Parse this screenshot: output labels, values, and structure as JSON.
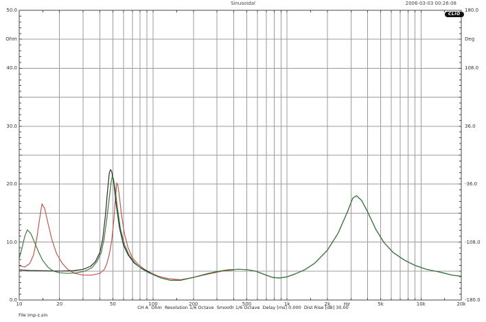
{
  "header": {
    "title": "Sinusoidal",
    "timestamp": "2006-03-03 00:26:08",
    "logo_text": "CLIO"
  },
  "footer": {
    "status_line": "CH A  Ohm  Resolution 1/6 Octave  Smooth 1/6 Octave  Delay [ms] 0.000  Dist Rise [dB] 30.00",
    "file_label": "File imp-z.sin"
  },
  "chart_data": {
    "type": "line",
    "title": "Sinusoidal",
    "x_axis": {
      "scale": "log",
      "unit": "Hz",
      "min": 10,
      "max": 20000,
      "tick_values": [
        10,
        20,
        50,
        100,
        200,
        500,
        1000,
        2000,
        5000,
        10000,
        20000
      ],
      "tick_labels": [
        "10",
        "20",
        "50",
        "100",
        "200",
        "500",
        "1k",
        "2k",
        "5k",
        "10k",
        "20k"
      ]
    },
    "y_axis_left": {
      "unit": "Ohm",
      "min": 0,
      "max": 50,
      "grid_step": 5,
      "tick_values": [
        50,
        40,
        30,
        20,
        10,
        0
      ],
      "tick_labels": [
        "50.0",
        "40.0",
        "30.0",
        "20.0",
        "10.0",
        "0.0"
      ]
    },
    "y_axis_right": {
      "unit": "Deg",
      "min": -180,
      "max": 180,
      "tick_values": [
        180,
        108,
        36,
        -36,
        -108,
        -180
      ],
      "tick_labels": [
        "180.0",
        "108.0",
        "36.0",
        "-36.0",
        "-108.0",
        "-180.0"
      ]
    },
    "grid": true,
    "legend": "none",
    "series": [
      {
        "name": "impedance-red",
        "color": "#c2564c",
        "points": [
          [
            10,
            5.9
          ],
          [
            11,
            5.7
          ],
          [
            12,
            6.3
          ],
          [
            12.8,
            7.8
          ],
          [
            13.5,
            10.5
          ],
          [
            14.2,
            14.0
          ],
          [
            14.8,
            16.6
          ],
          [
            15.5,
            15.8
          ],
          [
            16.5,
            13.0
          ],
          [
            17.5,
            10.5
          ],
          [
            19,
            8.0
          ],
          [
            21,
            6.3
          ],
          [
            23,
            5.3
          ],
          [
            26,
            4.6
          ],
          [
            30,
            4.3
          ],
          [
            35,
            4.3
          ],
          [
            40,
            4.6
          ],
          [
            43,
            5.2
          ],
          [
            45,
            6.2
          ],
          [
            47,
            7.8
          ],
          [
            49,
            10.2
          ],
          [
            51,
            14.0
          ],
          [
            52.5,
            18.0
          ],
          [
            53.5,
            20.2
          ],
          [
            54.5,
            19.8
          ],
          [
            56,
            17.8
          ],
          [
            58,
            14.8
          ],
          [
            61,
            11.5
          ],
          [
            65,
            9.0
          ],
          [
            70,
            7.3
          ],
          [
            77,
            6.2
          ],
          [
            86,
            5.3
          ],
          [
            96,
            4.7
          ],
          [
            110,
            4.1
          ],
          [
            130,
            3.7
          ],
          [
            160,
            3.5
          ],
          [
            200,
            3.9
          ],
          [
            260,
            4.5
          ],
          [
            330,
            5.0
          ],
          [
            400,
            5.2
          ]
        ]
      },
      {
        "name": "impedance-black",
        "color": "#2b2b2b",
        "points": [
          [
            10,
            5.2
          ],
          [
            12,
            5.1
          ],
          [
            15,
            5.05
          ],
          [
            20,
            5.0
          ],
          [
            25,
            5.05
          ],
          [
            30,
            5.3
          ],
          [
            34,
            5.8
          ],
          [
            37,
            6.6
          ],
          [
            40,
            8.2
          ],
          [
            42,
            10.5
          ],
          [
            44,
            14.5
          ],
          [
            45.5,
            18.5
          ],
          [
            47,
            21.8
          ],
          [
            48,
            22.5
          ],
          [
            49,
            22.2
          ],
          [
            51,
            20.0
          ],
          [
            53,
            16.5
          ],
          [
            56,
            12.5
          ],
          [
            60,
            9.5
          ],
          [
            65,
            7.8
          ],
          [
            72,
            6.4
          ],
          [
            80,
            5.6
          ],
          [
            90,
            5.0
          ],
          [
            100,
            4.4
          ],
          [
            115,
            3.8
          ],
          [
            135,
            3.4
          ],
          [
            160,
            3.4
          ],
          [
            200,
            3.9
          ],
          [
            250,
            4.5
          ],
          [
            300,
            4.9
          ],
          [
            360,
            5.2
          ],
          [
            430,
            5.3
          ],
          [
            500,
            5.25
          ],
          [
            580,
            5.0
          ],
          [
            680,
            4.4
          ],
          [
            780,
            3.9
          ],
          [
            880,
            3.8
          ],
          [
            1000,
            4.0
          ],
          [
            1150,
            4.5
          ],
          [
            1350,
            5.2
          ],
          [
            1600,
            6.3
          ],
          [
            2000,
            8.6
          ],
          [
            2400,
            11.5
          ],
          [
            2800,
            15.0
          ],
          [
            3100,
            17.6
          ],
          [
            3300,
            18.0
          ],
          [
            3600,
            17.2
          ],
          [
            4000,
            15.2
          ],
          [
            4600,
            12.2
          ],
          [
            5300,
            9.9
          ],
          [
            6200,
            8.2
          ],
          [
            7500,
            6.9
          ],
          [
            9000,
            6.0
          ],
          [
            11000,
            5.3
          ],
          [
            14000,
            4.8
          ],
          [
            17000,
            4.3
          ],
          [
            20000,
            4.1
          ]
        ]
      },
      {
        "name": "impedance-green",
        "color": "#3c7a3c",
        "points": [
          [
            10,
            7.2
          ],
          [
            10.5,
            9.0
          ],
          [
            11,
            11.0
          ],
          [
            11.5,
            12.1
          ],
          [
            12.2,
            11.5
          ],
          [
            13,
            10.0
          ],
          [
            14,
            8.2
          ],
          [
            15,
            6.8
          ],
          [
            16.5,
            5.6
          ],
          [
            18,
            5.0
          ],
          [
            20,
            4.7
          ],
          [
            23,
            4.6
          ],
          [
            27,
            4.7
          ],
          [
            31,
            5.0
          ],
          [
            35,
            5.6
          ],
          [
            38,
            6.6
          ],
          [
            41,
            8.2
          ],
          [
            43,
            10.5
          ],
          [
            45,
            13.8
          ],
          [
            47,
            17.5
          ],
          [
            48.5,
            20.3
          ],
          [
            49.5,
            21.3
          ],
          [
            50.5,
            21.0
          ],
          [
            52,
            19.2
          ],
          [
            54,
            16.0
          ],
          [
            57,
            12.3
          ],
          [
            61,
            9.6
          ],
          [
            66,
            7.8
          ],
          [
            73,
            6.4
          ],
          [
            81,
            5.5
          ],
          [
            91,
            4.8
          ],
          [
            100,
            4.4
          ],
          [
            115,
            3.8
          ],
          [
            135,
            3.4
          ],
          [
            160,
            3.4
          ],
          [
            200,
            3.9
          ],
          [
            250,
            4.5
          ],
          [
            300,
            4.9
          ],
          [
            360,
            5.2
          ],
          [
            430,
            5.3
          ],
          [
            500,
            5.25
          ],
          [
            580,
            5.0
          ],
          [
            680,
            4.4
          ],
          [
            780,
            3.9
          ],
          [
            880,
            3.8
          ],
          [
            1000,
            4.0
          ],
          [
            1150,
            4.5
          ],
          [
            1350,
            5.2
          ],
          [
            1600,
            6.3
          ],
          [
            2000,
            8.6
          ],
          [
            2400,
            11.5
          ],
          [
            2800,
            15.0
          ],
          [
            3100,
            17.6
          ],
          [
            3300,
            18.0
          ],
          [
            3600,
            17.2
          ],
          [
            4000,
            15.2
          ],
          [
            4600,
            12.2
          ],
          [
            5300,
            9.9
          ],
          [
            6200,
            8.2
          ],
          [
            7500,
            6.9
          ],
          [
            9000,
            6.0
          ],
          [
            11000,
            5.3
          ],
          [
            14000,
            4.8
          ],
          [
            17000,
            4.3
          ],
          [
            20000,
            4.1
          ]
        ]
      }
    ]
  }
}
